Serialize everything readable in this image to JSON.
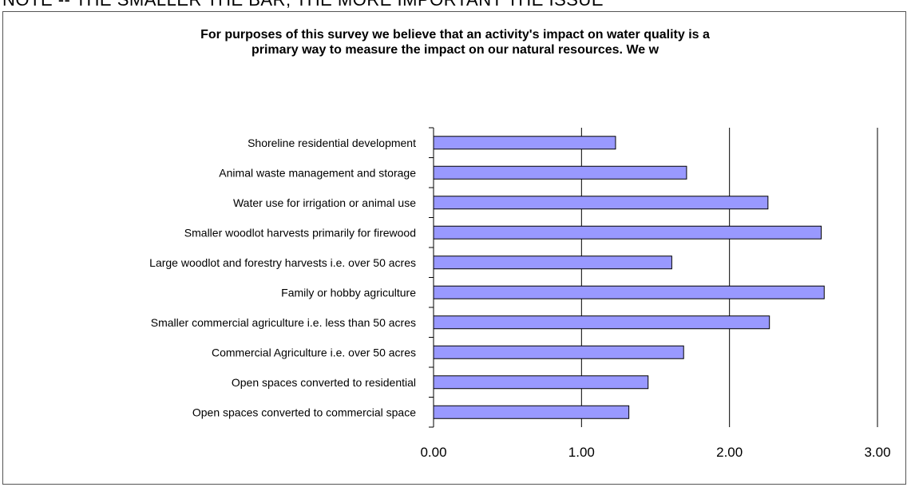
{
  "header_note": "NOTE -- THE SMALLER THE BAR, THE MORE IMPORTANT THE ISSUE",
  "colors": {
    "bar_fill": "#9999ff",
    "bar_stroke": "#000000",
    "grid": "#000000"
  },
  "chart_data": {
    "type": "bar",
    "orientation": "horizontal",
    "title_lines": [
      "For purposes of this survey we believe that an activity's impact on water quality is a",
      "primary way to measure the impact on our natural resources. We w"
    ],
    "categories": [
      "Shoreline residential development",
      "Animal waste management and storage",
      "Water use for irrigation or animal use",
      "Smaller woodlot harvests primarily for firewood",
      "Large woodlot and forestry harvests i.e. over 50 acres",
      "Family or hobby agriculture",
      "Smaller commercial agriculture i.e. less than 50 acres",
      "Commercial Agriculture i.e. over 50 acres",
      "Open spaces converted to residential",
      "Open spaces converted to commercial space"
    ],
    "values": [
      1.23,
      1.71,
      2.26,
      2.62,
      1.61,
      2.64,
      2.27,
      1.69,
      1.45,
      1.32
    ],
    "xlim": [
      0,
      3
    ],
    "xticks": [
      0,
      1,
      2,
      3
    ],
    "xtick_labels": [
      "0.00",
      "1.00",
      "2.00",
      "3.00"
    ],
    "grid": "vertical major gridlines",
    "legend": "none"
  }
}
